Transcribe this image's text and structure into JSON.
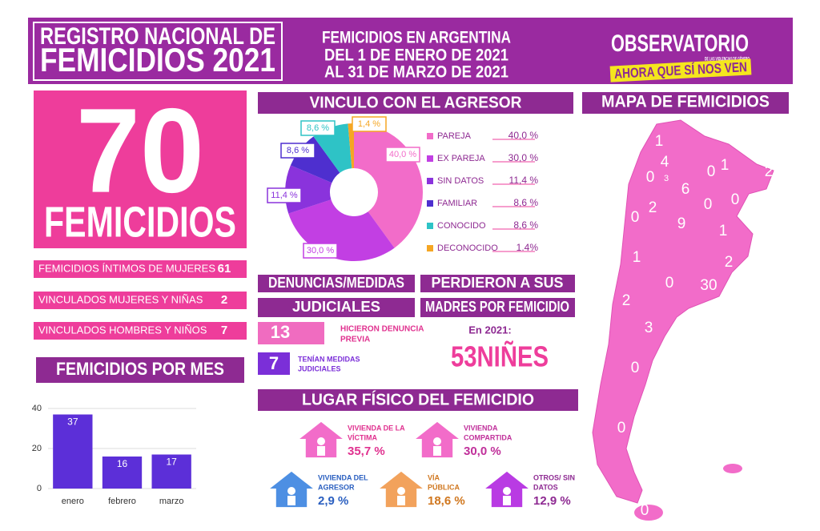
{
  "header": {
    "title": [
      "REGISTRO NACIONAL DE",
      "FEMICIDIOS 2021"
    ],
    "subtitle": [
      "FEMICIDIOS EN ARGENTINA",
      "DEL 1 DE ENERO DE 2021",
      "AL  31 DE MARZO DE 2021"
    ],
    "logo": [
      "OBSERVATORIO",
      "DE LAS VIOLENCIAS DE GÉNERO",
      "AHORA QUE SÍ NOS VEN"
    ]
  },
  "total": {
    "number": "70",
    "label": "FEMICIDIOS"
  },
  "breakdown": [
    {
      "label": "FEMICIDIOS ÍNTIMOS DE MUJERES",
      "value": "61"
    },
    {
      "label": "VINCULADOS MUJERES Y NIÑAS",
      "value": "2"
    },
    {
      "label": "VINCULADOS HOMBRES Y NIÑOS",
      "value": "7"
    }
  ],
  "denuncias": {
    "title": [
      "DENUNCIAS/MEDIDAS",
      "JUDICIALES"
    ],
    "items": [
      {
        "value": "13",
        "label": [
          "HICIERON DENUNCIA",
          "PREVIA"
        ]
      },
      {
        "value": "7",
        "label": [
          "TENÍAN MEDIDAS",
          "JUDICIALES"
        ]
      }
    ]
  },
  "madres": {
    "title": [
      "PERDIERON A SUS",
      "MADRES POR FEMICIDIO"
    ],
    "year": "En 2021:",
    "count": "53NIÑES"
  },
  "lugar": {
    "title": "LUGAR FÍSICO DEL FEMICIDIO",
    "items": [
      {
        "label": [
          "VIVIENDA DE LA",
          "VÍCTIMA"
        ],
        "value": "35,7 %"
      },
      {
        "label": [
          "VIVIENDA",
          "COMPARTIDA"
        ],
        "value": "30,0 %"
      },
      {
        "label": [
          "VIVIENDA DEL",
          "AGRESOR"
        ],
        "value": "2,9 %"
      },
      {
        "label": [
          "VÍA",
          "PÚBLICA"
        ],
        "value": "18,6 %"
      },
      {
        "label": [
          "OTROS/ SIN",
          "DATOS"
        ],
        "value": "12,9 %"
      }
    ]
  },
  "map": {
    "title": "MAPA DE FEMICIDIOS",
    "labels": [
      "1",
      "4",
      "3",
      "0",
      "6",
      "0",
      "1",
      "2",
      "0",
      "2",
      "0",
      "0",
      "9",
      "1",
      "1",
      "2",
      "0",
      "30",
      "2",
      "3",
      "0",
      "0",
      "0"
    ]
  },
  "chart_data": [
    {
      "type": "pie",
      "title": "VINCULO CON EL AGRESOR",
      "categories": [
        "PAREJA",
        "EX PAREJA",
        "SIN DATOS",
        "FAMILIAR",
        "CONOCIDO",
        "DECONOCIDO"
      ],
      "values": [
        40,
        30,
        11.4,
        8.6,
        8.6,
        1.4
      ],
      "value_labels": [
        "40,0 %",
        "30,0 %",
        "11,4 %",
        "8,6 %",
        "8,6 %",
        "1,4 %"
      ],
      "legend_value_labels": [
        "40,0 %",
        "30,0 %",
        "11,4 %",
        "8,6 %",
        "8,6 %",
        "1.4%"
      ],
      "colors": [
        "#f26cc9",
        "#c23fe3",
        "#8a33dc",
        "#4e2fcf",
        "#2ec3c6",
        "#f5a623"
      ],
      "donut": true
    },
    {
      "type": "bar",
      "title": "FEMICIDIOS POR MES",
      "categories": [
        "enero",
        "febrero",
        "marzo"
      ],
      "values": [
        37,
        16,
        17
      ],
      "color": "#5c2fd8",
      "ylim": [
        0,
        40
      ],
      "yticks": [
        0,
        20,
        40
      ],
      "grid": true
    }
  ]
}
